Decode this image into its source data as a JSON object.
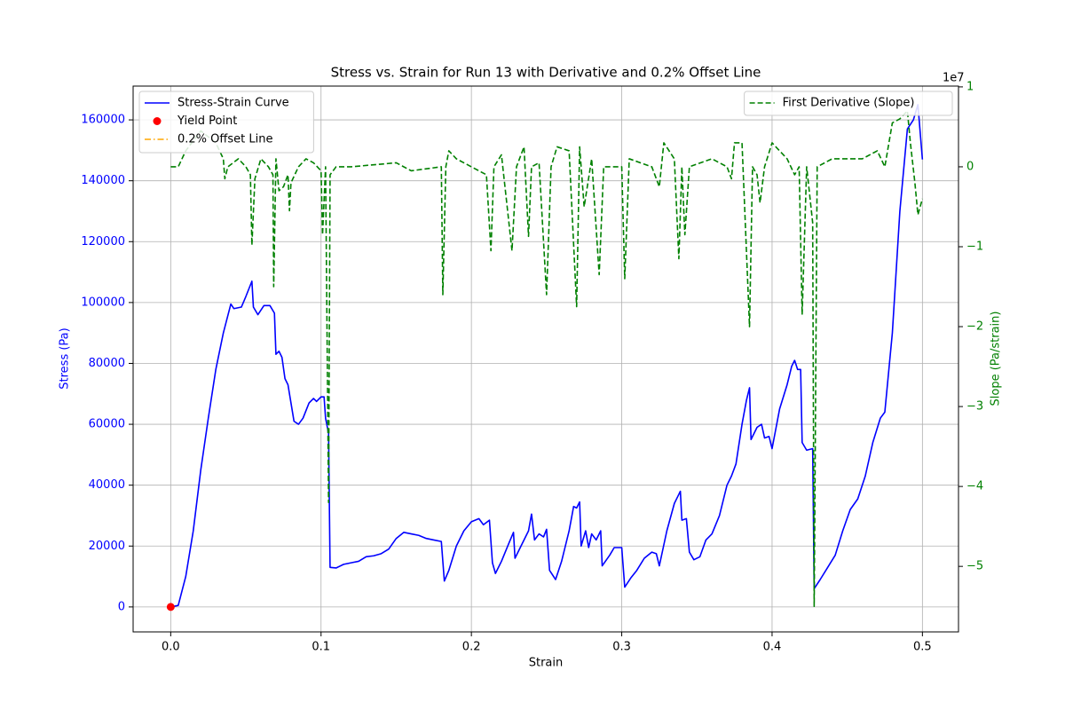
{
  "chart_data": {
    "type": "line",
    "title": "Stress vs. Strain for Run 13 with Derivative and 0.2% Offset Line",
    "x_label": "Strain",
    "y_label": "Stress (Pa)",
    "y2_label": "Slope (Pa/strain)",
    "y2_offset_label": "1e7",
    "y_color": "#0000ff",
    "y2_color": "#008000",
    "grid": true,
    "legend": "upper left",
    "y2_legend": "upper right",
    "xlim": [
      -0.025,
      0.524
    ],
    "ylim": [
      -8200,
      171100
    ],
    "y2lim": [
      -58200000,
      10100000
    ],
    "xticks": [
      {
        "value": 0,
        "label": "0.0"
      },
      0.1,
      0.2,
      0.3,
      0.4,
      0.5
    ],
    "yticks": [
      0,
      20000,
      40000,
      60000,
      80000,
      100000,
      120000,
      140000,
      160000
    ],
    "y2ticks": [
      {
        "value": 10000000,
        "label": "1"
      },
      0,
      {
        "value": -10000000,
        "label": "−1"
      },
      {
        "value": -20000000,
        "label": "−2"
      },
      {
        "value": -30000000,
        "label": "−3"
      },
      {
        "value": -40000000,
        "label": "−4"
      },
      {
        "value": -50000000,
        "label": "−5"
      }
    ],
    "series": [
      {
        "name": "Stress-Strain Curve",
        "style": "solid",
        "color": "#0000ff",
        "x": [
          0.0,
          0.005,
          0.01,
          0.015,
          0.02,
          0.025,
          0.03,
          0.035,
          0.04,
          0.042,
          0.047,
          0.05,
          0.054,
          0.055,
          0.058,
          0.062,
          0.066,
          0.069,
          0.07,
          0.072,
          0.074,
          0.076,
          0.078,
          0.08,
          0.082,
          0.085,
          0.088,
          0.092,
          0.095,
          0.097,
          0.1,
          0.102,
          0.103,
          0.105,
          0.106,
          0.11,
          0.115,
          0.12,
          0.125,
          0.13,
          0.135,
          0.14,
          0.145,
          0.15,
          0.155,
          0.16,
          0.165,
          0.17,
          0.175,
          0.18,
          0.182,
          0.185,
          0.19,
          0.195,
          0.2,
          0.205,
          0.208,
          0.212,
          0.214,
          0.216,
          0.22,
          0.225,
          0.228,
          0.229,
          0.233,
          0.238,
          0.24,
          0.242,
          0.245,
          0.248,
          0.25,
          0.252,
          0.256,
          0.26,
          0.265,
          0.268,
          0.27,
          0.272,
          0.273,
          0.276,
          0.278,
          0.28,
          0.283,
          0.286,
          0.287,
          0.292,
          0.295,
          0.3,
          0.302,
          0.306,
          0.31,
          0.315,
          0.32,
          0.323,
          0.325,
          0.33,
          0.335,
          0.339,
          0.34,
          0.343,
          0.345,
          0.348,
          0.352,
          0.356,
          0.36,
          0.365,
          0.37,
          0.373,
          0.376,
          0.38,
          0.383,
          0.385,
          0.386,
          0.39,
          0.393,
          0.395,
          0.398,
          0.4,
          0.405,
          0.41,
          0.413,
          0.415,
          0.417,
          0.419,
          0.42,
          0.423,
          0.427,
          0.428,
          0.432,
          0.437,
          0.442,
          0.447,
          0.452,
          0.457,
          0.462,
          0.467,
          0.472,
          0.475,
          0.48,
          0.485,
          0.49,
          0.494,
          0.497,
          0.5
        ],
        "values": [
          0,
          500,
          10000,
          25000,
          45000,
          62000,
          78000,
          90000,
          99500,
          98000,
          98500,
          102000,
          107000,
          98500,
          96000,
          99000,
          99000,
          96500,
          83000,
          84000,
          82000,
          75000,
          73000,
          67000,
          61000,
          60000,
          62000,
          67000,
          68500,
          67500,
          69000,
          69000,
          62000,
          57000,
          13000,
          12800,
          14000,
          14500,
          15000,
          16500,
          16800,
          17500,
          19000,
          22500,
          24500,
          24000,
          23500,
          22500,
          22000,
          21500,
          8500,
          12000,
          20000,
          25000,
          28000,
          29000,
          27000,
          28500,
          14500,
          11000,
          15000,
          21000,
          24500,
          16000,
          20000,
          25000,
          30500,
          22000,
          24000,
          23000,
          25500,
          12000,
          9000,
          15000,
          25000,
          33000,
          32500,
          34500,
          20000,
          25000,
          19500,
          24000,
          22000,
          25000,
          13500,
          17000,
          19500,
          19500,
          6500,
          9500,
          12000,
          16000,
          18000,
          17500,
          13500,
          25000,
          34000,
          38000,
          28500,
          29000,
          18000,
          15500,
          16500,
          22000,
          24000,
          30000,
          40000,
          43000,
          47000,
          60000,
          68000,
          72000,
          55000,
          59000,
          60000,
          55500,
          56000,
          52000,
          65000,
          73000,
          79000,
          81000,
          78000,
          78000,
          54000,
          51500,
          52000,
          6000,
          9000,
          13000,
          17000,
          25000,
          32000,
          35500,
          43000,
          54000,
          62000,
          64000,
          90000,
          130000,
          157000,
          160000,
          165000,
          147000
        ]
      },
      {
        "name": "Yield Point",
        "style": "scatter",
        "color": "#ff0000",
        "x": [
          0.0
        ],
        "values": [
          0
        ]
      },
      {
        "name": "0.2% Offset Line",
        "style": "dashdot",
        "color": "#ffa500",
        "x": [],
        "values": []
      },
      {
        "name": "First Derivative (Slope)",
        "style": "dashed",
        "color": "#008000",
        "axis": "y2",
        "x": [
          0.0,
          0.005,
          0.01,
          0.02,
          0.03,
          0.035,
          0.036,
          0.038,
          0.045,
          0.05,
          0.053,
          0.054,
          0.056,
          0.06,
          0.065,
          0.068,
          0.0685,
          0.07,
          0.072,
          0.075,
          0.078,
          0.079,
          0.08,
          0.085,
          0.09,
          0.095,
          0.1,
          0.101,
          0.103,
          0.105,
          0.106,
          0.11,
          0.12,
          0.15,
          0.16,
          0.18,
          0.181,
          0.183,
          0.185,
          0.19,
          0.2,
          0.21,
          0.213,
          0.215,
          0.22,
          0.227,
          0.23,
          0.235,
          0.238,
          0.24,
          0.245,
          0.25,
          0.253,
          0.257,
          0.265,
          0.27,
          0.272,
          0.275,
          0.28,
          0.285,
          0.288,
          0.29,
          0.3,
          0.302,
          0.305,
          0.32,
          0.325,
          0.328,
          0.335,
          0.338,
          0.34,
          0.342,
          0.345,
          0.36,
          0.37,
          0.373,
          0.375,
          0.38,
          0.385,
          0.387,
          0.39,
          0.392,
          0.395,
          0.4,
          0.405,
          0.41,
          0.415,
          0.418,
          0.42,
          0.423,
          0.427,
          0.428,
          0.43,
          0.44,
          0.45,
          0.46,
          0.47,
          0.475,
          0.48,
          0.485,
          0.49,
          0.492,
          0.495,
          0.497,
          0.5
        ],
        "values": [
          0,
          0,
          2000000,
          4500000,
          3000000,
          1000000,
          -1500000,
          0,
          1000000,
          0,
          -1000000,
          -9800000,
          -1500000,
          1000000,
          0,
          -1000000,
          -15000000,
          1000000,
          -3000000,
          -2500000,
          -1000000,
          -5500000,
          -2000000,
          0,
          1000000,
          500000,
          -500000,
          -8500000,
          0,
          -42000000,
          -1000000,
          0,
          0,
          500000,
          -500000,
          0,
          -16000000,
          0,
          2000000,
          1000000,
          0,
          -1000000,
          -10500000,
          0,
          1500000,
          -10500000,
          0,
          2500000,
          -8700000,
          0,
          500000,
          -16000000,
          0,
          2500000,
          2000000,
          -17500000,
          2500000,
          -5000000,
          1000000,
          -13500000,
          0,
          0,
          0,
          -14000000,
          1000000,
          0,
          -2500000,
          3000000,
          1000000,
          -11500000,
          0,
          -8500000,
          0,
          1000000,
          0,
          -1500000,
          3000000,
          3000000,
          -20000000,
          0,
          -1000000,
          -4500000,
          0,
          3000000,
          2000000,
          1000000,
          -1000000,
          0,
          -18500000,
          0,
          -7000000,
          -55000000,
          0,
          1000000,
          1000000,
          1000000,
          2000000,
          0,
          5500000,
          6000000,
          7000000,
          3000000,
          -2000000,
          -6000000,
          -4000000
        ]
      }
    ]
  }
}
